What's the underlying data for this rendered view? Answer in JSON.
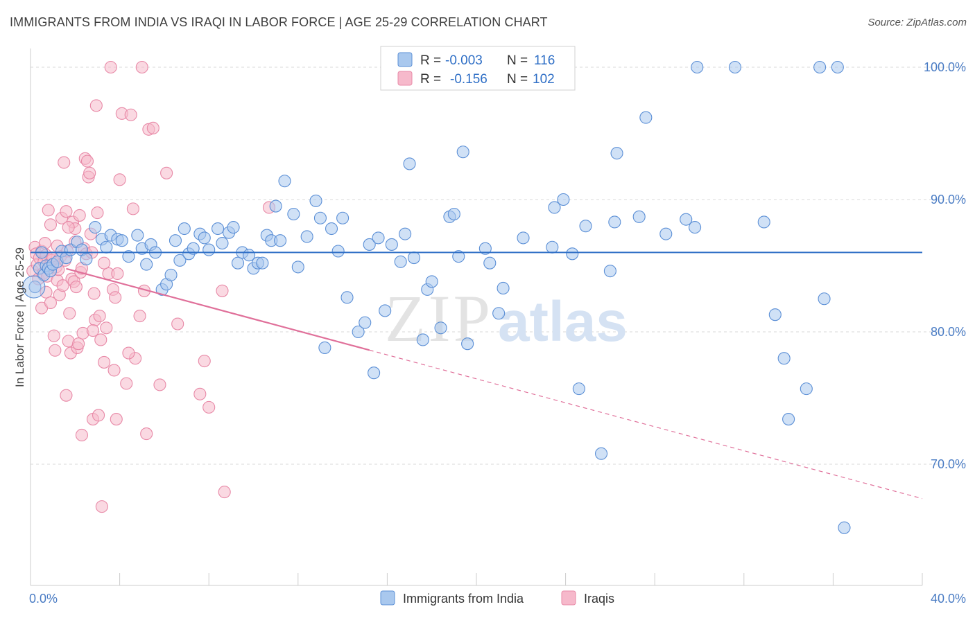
{
  "header": {
    "title": "IMMIGRANTS FROM INDIA VS IRAQI IN LABOR FORCE | AGE 25-29 CORRELATION CHART",
    "source": "Source: ZipAtlas.com"
  },
  "watermark": {
    "zip": "ZIP",
    "atlas": "atlas"
  },
  "colors": {
    "blue_fill": "#a9c8ee",
    "blue_stroke": "#5b8fd6",
    "blue_line": "#2f6fc6",
    "pink_fill": "#f6b9cb",
    "pink_stroke": "#e889a7",
    "pink_line": "#e0709a",
    "tick_text": "#4a7cc4",
    "grid": "#d8d8d8"
  },
  "legend": {
    "rows": [
      {
        "r_label": "R =",
        "r_value": "-0.003",
        "n_label": "N =",
        "n_value": "116"
      },
      {
        "r_label": "R =",
        "r_value": "-0.156",
        "n_label": "N =",
        "n_value": "102"
      }
    ]
  },
  "chart_data": {
    "type": "scatter",
    "title": "IMMIGRANTS FROM INDIA VS IRAQI IN LABOR FORCE | AGE 25-29 CORRELATION CHART",
    "ylabel": "In Labor Force | Age 25-29",
    "xlim": [
      0,
      40
    ],
    "ylim": [
      61.5,
      101.5
    ],
    "x_tick_labels": [
      "0.0%",
      "40.0%"
    ],
    "y_ticks": [
      {
        "value": 100,
        "label": "100.0%"
      },
      {
        "value": 90,
        "label": "90.0%"
      },
      {
        "value": 80,
        "label": "80.0%"
      },
      {
        "value": 70,
        "label": "70.0%"
      }
    ],
    "grid": true,
    "legend_position": "top-center",
    "series": [
      {
        "name": "Immigrants from India",
        "color": "#a9c8ee",
        "trend": {
          "x": [
            0,
            40
          ],
          "y": [
            86.0,
            86.0
          ],
          "dashed_from": null
        },
        "points": [
          [
            0.2,
            83.4
          ],
          [
            0.4,
            84.8
          ],
          [
            0.5,
            86.0
          ],
          [
            0.6,
            84.3
          ],
          [
            0.7,
            85.0
          ],
          [
            0.8,
            84.8
          ],
          [
            0.9,
            84.6
          ],
          [
            1.0,
            85.1
          ],
          [
            1.2,
            85.3
          ],
          [
            1.4,
            86.1
          ],
          [
            1.6,
            85.6
          ],
          [
            1.8,
            86.2
          ],
          [
            2.1,
            86.8
          ],
          [
            2.3,
            86.2
          ],
          [
            2.5,
            85.5
          ],
          [
            2.9,
            87.9
          ],
          [
            3.2,
            87.0
          ],
          [
            3.4,
            86.4
          ],
          [
            3.6,
            87.3
          ],
          [
            3.9,
            87.0
          ],
          [
            4.1,
            86.9
          ],
          [
            4.4,
            85.7
          ],
          [
            4.8,
            87.3
          ],
          [
            5.0,
            86.3
          ],
          [
            5.2,
            85.1
          ],
          [
            5.4,
            86.6
          ],
          [
            5.6,
            86.0
          ],
          [
            5.9,
            83.2
          ],
          [
            6.1,
            83.6
          ],
          [
            6.3,
            84.3
          ],
          [
            6.5,
            86.9
          ],
          [
            6.7,
            85.4
          ],
          [
            6.9,
            87.8
          ],
          [
            7.1,
            85.9
          ],
          [
            7.3,
            86.3
          ],
          [
            7.6,
            87.4
          ],
          [
            7.8,
            87.1
          ],
          [
            8.0,
            86.2
          ],
          [
            8.4,
            87.8
          ],
          [
            8.6,
            86.7
          ],
          [
            8.9,
            87.5
          ],
          [
            9.1,
            87.9
          ],
          [
            9.3,
            85.2
          ],
          [
            9.5,
            86.0
          ],
          [
            9.8,
            85.8
          ],
          [
            10.0,
            84.8
          ],
          [
            10.2,
            85.2
          ],
          [
            10.4,
            85.2
          ],
          [
            10.6,
            87.3
          ],
          [
            10.8,
            86.9
          ],
          [
            11.0,
            89.5
          ],
          [
            11.2,
            86.9
          ],
          [
            11.4,
            91.4
          ],
          [
            11.8,
            88.9
          ],
          [
            12.0,
            84.9
          ],
          [
            12.4,
            87.2
          ],
          [
            12.8,
            89.9
          ],
          [
            13.0,
            88.6
          ],
          [
            13.2,
            78.8
          ],
          [
            13.5,
            87.8
          ],
          [
            13.8,
            86.1
          ],
          [
            14.0,
            88.6
          ],
          [
            14.2,
            82.6
          ],
          [
            14.7,
            80.0
          ],
          [
            15.0,
            80.7
          ],
          [
            15.2,
            86.6
          ],
          [
            15.4,
            76.9
          ],
          [
            15.6,
            87.1
          ],
          [
            15.9,
            81.6
          ],
          [
            16.2,
            86.6
          ],
          [
            16.6,
            85.3
          ],
          [
            16.8,
            87.4
          ],
          [
            17.0,
            92.7
          ],
          [
            17.2,
            85.6
          ],
          [
            17.6,
            79.4
          ],
          [
            17.8,
            83.2
          ],
          [
            18.0,
            83.8
          ],
          [
            18.4,
            80.3
          ],
          [
            18.8,
            88.7
          ],
          [
            19.0,
            88.9
          ],
          [
            19.2,
            85.7
          ],
          [
            19.4,
            93.6
          ],
          [
            19.6,
            79.1
          ],
          [
            20.4,
            86.3
          ],
          [
            20.6,
            85.2
          ],
          [
            21.0,
            81.4
          ],
          [
            21.2,
            83.3
          ],
          [
            22.1,
            87.1
          ],
          [
            23.4,
            86.4
          ],
          [
            23.5,
            89.4
          ],
          [
            23.9,
            90.0
          ],
          [
            24.3,
            85.9
          ],
          [
            24.6,
            75.7
          ],
          [
            24.9,
            88.0
          ],
          [
            25.6,
            70.8
          ],
          [
            26.0,
            84.6
          ],
          [
            26.2,
            88.3
          ],
          [
            26.3,
            93.5
          ],
          [
            27.3,
            88.7
          ],
          [
            27.6,
            96.2
          ],
          [
            28.5,
            87.4
          ],
          [
            29.4,
            88.5
          ],
          [
            29.8,
            87.9
          ],
          [
            29.9,
            100.0
          ],
          [
            31.6,
            100.0
          ],
          [
            32.9,
            88.3
          ],
          [
            33.4,
            81.3
          ],
          [
            33.8,
            78.0
          ],
          [
            34.0,
            73.4
          ],
          [
            34.8,
            75.7
          ],
          [
            35.4,
            100.0
          ],
          [
            35.6,
            82.5
          ],
          [
            36.2,
            100.0
          ],
          [
            36.5,
            65.2
          ]
        ]
      },
      {
        "name": "Iraqis",
        "color": "#f6b9cb",
        "trend": {
          "x": [
            0,
            40
          ],
          "y": [
            85.5,
            67.4
          ],
          "dashed_from": 15.2
        },
        "points": [
          [
            0.1,
            84.6
          ],
          [
            0.2,
            86.4
          ],
          [
            0.25,
            85.9
          ],
          [
            0.3,
            85.1
          ],
          [
            0.35,
            84.0
          ],
          [
            0.4,
            85.6
          ],
          [
            0.5,
            86.1
          ],
          [
            0.55,
            84.4
          ],
          [
            0.6,
            85.3
          ],
          [
            0.65,
            86.7
          ],
          [
            0.7,
            85.8
          ],
          [
            0.75,
            84.2
          ],
          [
            0.8,
            89.2
          ],
          [
            0.85,
            85.0
          ],
          [
            0.9,
            88.1
          ],
          [
            0.95,
            85.4
          ],
          [
            1.0,
            85.6
          ],
          [
            1.05,
            79.7
          ],
          [
            1.1,
            78.6
          ],
          [
            1.15,
            84.9
          ],
          [
            1.2,
            83.9
          ],
          [
            1.25,
            84.7
          ],
          [
            1.3,
            82.8
          ],
          [
            1.35,
            85.7
          ],
          [
            1.4,
            88.6
          ],
          [
            1.45,
            83.5
          ],
          [
            1.5,
            92.8
          ],
          [
            1.55,
            85.4
          ],
          [
            1.6,
            89.1
          ],
          [
            1.65,
            86.1
          ],
          [
            1.7,
            79.3
          ],
          [
            1.75,
            81.4
          ],
          [
            1.8,
            78.4
          ],
          [
            1.85,
            84.0
          ],
          [
            1.9,
            88.3
          ],
          [
            1.95,
            83.8
          ],
          [
            2.0,
            87.8
          ],
          [
            2.05,
            83.4
          ],
          [
            2.1,
            78.8
          ],
          [
            2.15,
            79.1
          ],
          [
            2.2,
            88.8
          ],
          [
            2.25,
            84.5
          ],
          [
            2.3,
            72.2
          ],
          [
            2.35,
            79.9
          ],
          [
            2.4,
            86.3
          ],
          [
            2.45,
            93.1
          ],
          [
            2.5,
            85.9
          ],
          [
            2.55,
            92.9
          ],
          [
            2.6,
            91.7
          ],
          [
            2.65,
            92.0
          ],
          [
            2.7,
            87.4
          ],
          [
            2.75,
            86.0
          ],
          [
            2.8,
            73.4
          ],
          [
            2.85,
            82.9
          ],
          [
            2.9,
            80.9
          ],
          [
            2.95,
            97.1
          ],
          [
            3.0,
            89.0
          ],
          [
            3.05,
            73.7
          ],
          [
            3.1,
            81.2
          ],
          [
            3.15,
            79.4
          ],
          [
            3.2,
            66.8
          ],
          [
            3.3,
            77.7
          ],
          [
            3.4,
            80.3
          ],
          [
            3.5,
            84.4
          ],
          [
            3.6,
            100.0
          ],
          [
            3.7,
            83.2
          ],
          [
            3.75,
            77.1
          ],
          [
            3.8,
            82.6
          ],
          [
            3.85,
            73.4
          ],
          [
            3.9,
            84.4
          ],
          [
            4.0,
            91.5
          ],
          [
            4.1,
            96.5
          ],
          [
            4.3,
            76.1
          ],
          [
            4.5,
            96.4
          ],
          [
            4.6,
            89.3
          ],
          [
            4.7,
            78.0
          ],
          [
            4.9,
            81.2
          ],
          [
            5.0,
            100.0
          ],
          [
            5.1,
            83.1
          ],
          [
            5.2,
            72.3
          ],
          [
            5.3,
            95.3
          ],
          [
            5.5,
            95.4
          ],
          [
            5.8,
            76.0
          ],
          [
            6.1,
            92.0
          ],
          [
            6.6,
            80.6
          ],
          [
            7.6,
            75.3
          ],
          [
            7.8,
            77.8
          ],
          [
            8.0,
            74.3
          ],
          [
            8.6,
            83.1
          ],
          [
            8.7,
            67.9
          ],
          [
            10.7,
            89.4
          ],
          [
            0.5,
            81.8
          ],
          [
            0.7,
            83.0
          ],
          [
            1.6,
            75.2
          ],
          [
            2.0,
            86.8
          ],
          [
            2.8,
            80.1
          ],
          [
            1.2,
            86.5
          ],
          [
            0.9,
            82.2
          ],
          [
            3.3,
            85.2
          ],
          [
            4.4,
            78.4
          ],
          [
            1.7,
            87.9
          ],
          [
            2.3,
            84.8
          ]
        ]
      }
    ]
  },
  "bottom_legend": [
    {
      "label": "Immigrants from India"
    },
    {
      "label": "Iraqis"
    }
  ]
}
